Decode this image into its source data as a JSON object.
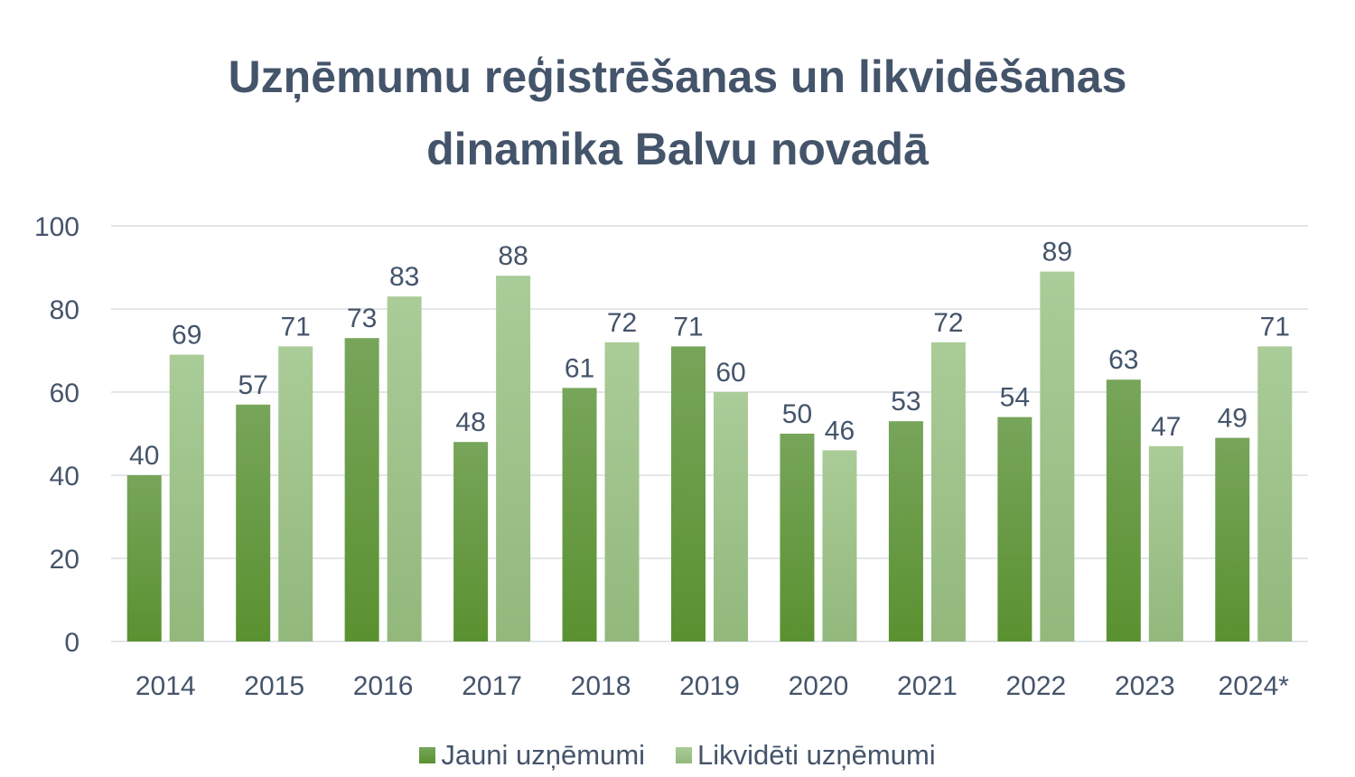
{
  "chart_data": {
    "type": "bar",
    "title_lines": [
      "Uzņēmumu reģistrēšanas un likvidēšanas",
      "dinamika Balvu novadā"
    ],
    "categories": [
      "2014",
      "2015",
      "2016",
      "2017",
      "2018",
      "2019",
      "2020",
      "2021",
      "2022",
      "2023",
      "2024*"
    ],
    "series": [
      {
        "name": "Jauni uzņēmumi",
        "values": [
          40,
          57,
          73,
          48,
          61,
          71,
          50,
          53,
          54,
          63,
          49
        ],
        "color_top": "#77a55a",
        "color_bottom": "#5a9130"
      },
      {
        "name": "Likvidēti uzņēmumi",
        "values": [
          69,
          71,
          83,
          88,
          72,
          60,
          46,
          72,
          89,
          47,
          71
        ],
        "color_top": "#aacc98",
        "color_bottom": "#92b87c"
      }
    ],
    "ylim": [
      0,
      100
    ],
    "yticks": [
      "0",
      "20",
      "40",
      "60",
      "80",
      "100"
    ],
    "grid": true,
    "data_labels": true,
    "legend_position": "bottom",
    "text_color": "#44546a",
    "grid_color": "#e3e6ea"
  }
}
